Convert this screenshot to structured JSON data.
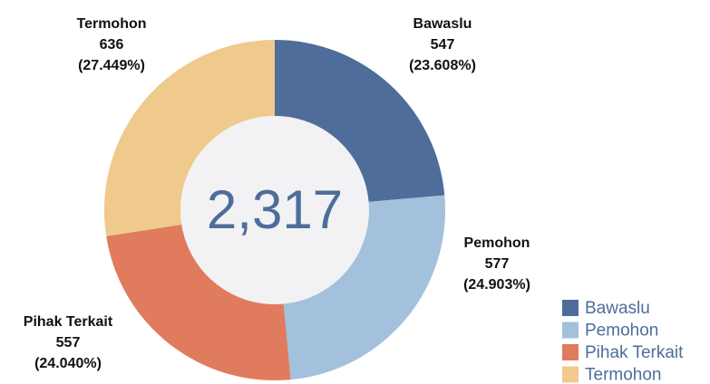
{
  "chart_data": {
    "type": "donut",
    "categories": [
      "Bawaslu",
      "Pemohon",
      "Pihak Terkait",
      "Termohon"
    ],
    "values": [
      547,
      577,
      557,
      636
    ],
    "percent_labels": [
      "(23.608%)",
      "(24.903%)",
      "(24.040%)",
      "(27.449%)"
    ],
    "colors": [
      "#4e6d9a",
      "#a3c0dc",
      "#e07b5d",
      "#f0c98c"
    ],
    "center_label": "2,317",
    "legend": "bottom-right"
  }
}
